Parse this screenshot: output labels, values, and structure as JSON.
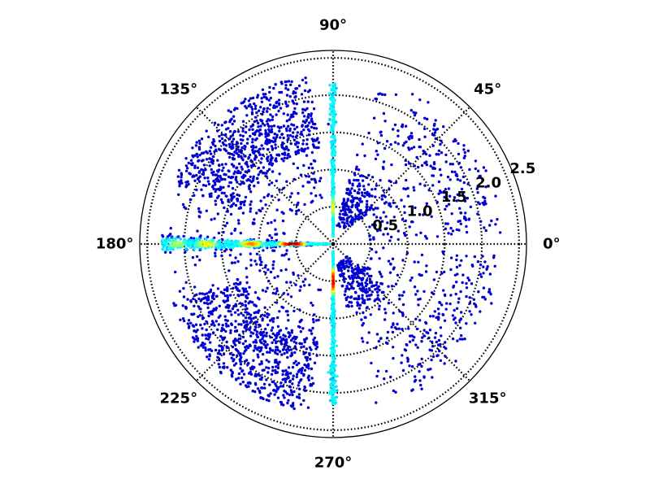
{
  "chart_data": {
    "type": "scatter",
    "projection": "polar",
    "title": "",
    "theta_ticks": [
      {
        "angle": 0,
        "label": "0°"
      },
      {
        "angle": 45,
        "label": "45°"
      },
      {
        "angle": 90,
        "label": "90°"
      },
      {
        "angle": 135,
        "label": "135°"
      },
      {
        "angle": 180,
        "label": "180°"
      },
      {
        "angle": 225,
        "label": "225°"
      },
      {
        "angle": 270,
        "label": "270°"
      },
      {
        "angle": 315,
        "label": "315°"
      }
    ],
    "r_ticks": [
      {
        "value": 0.5,
        "label": "0.5"
      },
      {
        "value": 1.0,
        "label": "1.0"
      },
      {
        "value": 1.5,
        "label": "1.5"
      },
      {
        "value": 2.0,
        "label": "2.0"
      },
      {
        "value": 2.5,
        "label": "2.5"
      }
    ],
    "r_label_angle_deg": 22.5,
    "rlim": [
      0,
      2.6
    ],
    "grid": true,
    "colormap": "jet",
    "marker_color_encodes": "local point density",
    "clusters": [
      {
        "theta_range_deg": [
          98,
          160
        ],
        "r_range": [
          1.3,
          2.3
        ],
        "count": 620
      },
      {
        "theta_range_deg": [
          200,
          262
        ],
        "r_range": [
          1.3,
          2.3
        ],
        "count": 620
      },
      {
        "theta_range_deg": [
          100,
          175
        ],
        "r_range": [
          0.6,
          2.2
        ],
        "count": 220
      },
      {
        "theta_range_deg": [
          185,
          260
        ],
        "r_range": [
          0.6,
          2.2
        ],
        "count": 220
      },
      {
        "theta_range_deg": [
          3,
          75
        ],
        "r_range": [
          0.5,
          2.3
        ],
        "count": 220
      },
      {
        "theta_range_deg": [
          285,
          357
        ],
        "r_range": [
          0.5,
          2.3
        ],
        "count": 220
      },
      {
        "theta_range_deg": [
          5,
          60
        ],
        "r_range": [
          1.6,
          2.2
        ],
        "count": 110
      },
      {
        "theta_range_deg": [
          300,
          355
        ],
        "r_range": [
          1.6,
          2.2
        ],
        "count": 110
      },
      {
        "theta_range_deg": [
          40,
          78
        ],
        "r_range": [
          0.25,
          0.95
        ],
        "count": 150
      },
      {
        "theta_range_deg": [
          282,
          320
        ],
        "r_range": [
          0.25,
          0.95
        ],
        "count": 170
      }
    ],
    "ridges": [
      {
        "theta_deg": 180,
        "r_range": [
          0.05,
          2.3
        ],
        "count": 650,
        "spread_deg": 1.4
      },
      {
        "theta_deg": 90,
        "r_range": [
          0.1,
          2.15
        ],
        "count": 340,
        "spread_deg": 0.7
      },
      {
        "theta_deg": 270,
        "r_range": [
          0.1,
          2.15
        ],
        "count": 340,
        "spread_deg": 0.7
      }
    ],
    "hot_spots": [
      {
        "theta_deg": 180,
        "r": 0.55,
        "density": 1.0
      },
      {
        "theta_deg": 180,
        "r": 1.1,
        "density": 0.75
      },
      {
        "theta_deg": 180,
        "r": 1.7,
        "density": 0.65
      },
      {
        "theta_deg": 180,
        "r": 2.1,
        "density": 0.55
      },
      {
        "theta_deg": 270,
        "r": 0.5,
        "density": 0.9
      },
      {
        "theta_deg": 90,
        "r": 0.5,
        "density": 0.6
      }
    ]
  }
}
